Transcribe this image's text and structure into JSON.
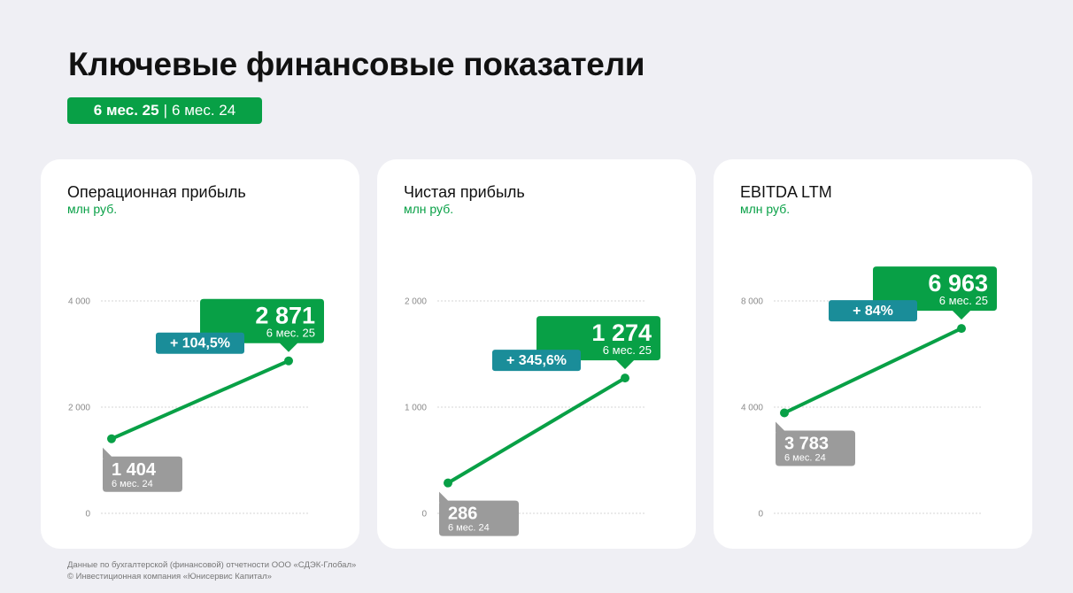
{
  "header": {
    "title": "Ключевые финансовые показатели",
    "period_current": "6 мес. 25",
    "period_separator": "|",
    "period_previous": "6 мес. 24"
  },
  "colors": {
    "accent_green": "#08a046",
    "change_teal": "#1a8d99",
    "previous_gray": "#9b9b9b",
    "background": "#efeff4"
  },
  "chart_data": [
    {
      "type": "line",
      "title": "Операционная прибыль",
      "unit": "млн руб.",
      "x": [
        "6 мес. 24",
        "6 мес. 25"
      ],
      "values": [
        1404,
        2871
      ],
      "ylim": [
        0,
        4000
      ],
      "yticks": [
        "0",
        "2 000",
        "4 000"
      ],
      "ytick_values": [
        0,
        2000,
        4000
      ],
      "previous": {
        "value_label": "1 404",
        "period_label": "6 мес. 24"
      },
      "current": {
        "value_label": "2 871",
        "period_label": "6 мес. 25"
      },
      "change_label": "+ 104,5%",
      "grid": true
    },
    {
      "type": "line",
      "title": "Чистая прибыль",
      "unit": "млн руб.",
      "x": [
        "6 мес. 24",
        "6 мес. 25"
      ],
      "values": [
        286,
        1274
      ],
      "ylim": [
        0,
        2000
      ],
      "yticks": [
        "0",
        "1 000",
        "2 000"
      ],
      "ytick_values": [
        0,
        1000,
        2000
      ],
      "previous": {
        "value_label": "286",
        "period_label": "6 мес. 24"
      },
      "current": {
        "value_label": "1 274",
        "period_label": "6 мес. 25"
      },
      "change_label": "+ 345,6%",
      "grid": true
    },
    {
      "type": "line",
      "title": "EBITDA LTM",
      "unit": "млн руб.",
      "x": [
        "6 мес. 24",
        "6 мес. 25"
      ],
      "values": [
        3783,
        6963
      ],
      "ylim": [
        0,
        8000
      ],
      "yticks": [
        "0",
        "4 000",
        "8 000"
      ],
      "ytick_values": [
        0,
        4000,
        8000
      ],
      "previous": {
        "value_label": "3 783",
        "period_label": "6 мес. 24"
      },
      "current": {
        "value_label": "6 963",
        "period_label": "6 мес. 25"
      },
      "change_label": "+ 84%",
      "grid": true
    }
  ],
  "footer": {
    "source": "Данные по бухгалтерской (финансовой) отчетности ООО «СДЭК-Глобал»",
    "copyright": "© Инвестиционная компания «Юнисервис Капитал»"
  }
}
